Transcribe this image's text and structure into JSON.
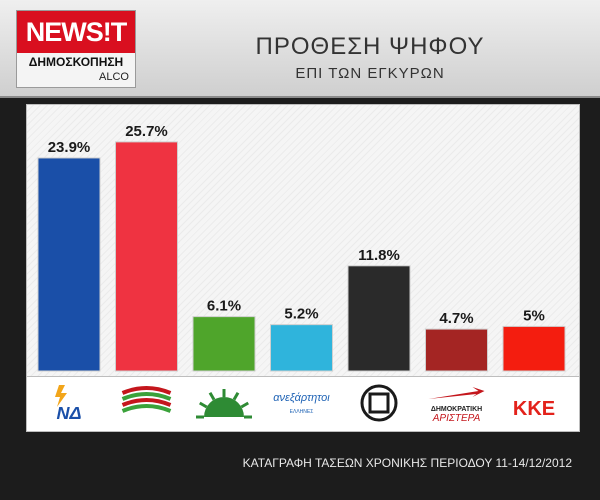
{
  "header": {
    "logo_text": "NEWS!T",
    "logo_subtitle": "ΔΗΜΟΣΚΟΠΗΣΗ",
    "logo_agency": "ALCO",
    "title": "ΠΡΟΘΕΣΗ ΨΗΦΟΥ",
    "subtitle": "ΕΠΙ ΤΩΝ ΕΓΚΥΡΩΝ"
  },
  "chart_data": {
    "type": "bar",
    "categories": [
      "ΝΔ",
      "ΣΥΡΙΖΑ",
      "ΠΑΣΟΚ",
      "ΑΝΕΞΑΡΤΗΤΟΙ ΕΛΛΗΝΕΣ",
      "ΧΡΥΣΗ ΑΥΓΗ",
      "ΔΗΜΟΚΡΑΤΙΚΗ ΑΡΙΣΤΕΡΑ",
      "ΚΚΕ"
    ],
    "values": [
      23.9,
      25.7,
      6.1,
      5.2,
      11.8,
      4.7,
      5
    ],
    "value_labels": [
      "23.9%",
      "25.7%",
      "6.1%",
      "5.2%",
      "11.8%",
      "4.7%",
      "5%"
    ],
    "colors": [
      "#1a4fa8",
      "#ef3341",
      "#4fa52b",
      "#2fb4dc",
      "#2a2a2a",
      "#a42523",
      "#f41d0f"
    ],
    "ylim": [
      0,
      28
    ],
    "grid": false,
    "legend": "none"
  },
  "party_logos": [
    {
      "name": "nd-logo",
      "text": "ΝΔ",
      "color": "#1a4fa8"
    },
    {
      "name": "syriza-logo",
      "text": "",
      "color": "#c4161c"
    },
    {
      "name": "pasok-logo",
      "text": "",
      "color": "#2e8b34"
    },
    {
      "name": "anel-logo",
      "text": "ανεξάρτητοι",
      "sub": "ΕΛΛΗΝΕΣ",
      "color": "#1f63b5"
    },
    {
      "name": "xa-logo",
      "text": "",
      "color": "#1a1a1a"
    },
    {
      "name": "dimar-logo",
      "text": "ΔΗΜΟΚΡΑΤΙΚΗ",
      "sub": "ΑΡΙΣΤΕΡΑ",
      "color": "#c4161c"
    },
    {
      "name": "kke-logo",
      "text": "ΚΚΕ",
      "color": "#e3221b"
    }
  ],
  "footer": "ΚΑΤΑΓΡΑΦΗ ΤΑΣΕΩΝ ΧΡΟΝΙΚΗΣ ΠΕΡΙΟΔΟΥ 11-14/12/2012"
}
